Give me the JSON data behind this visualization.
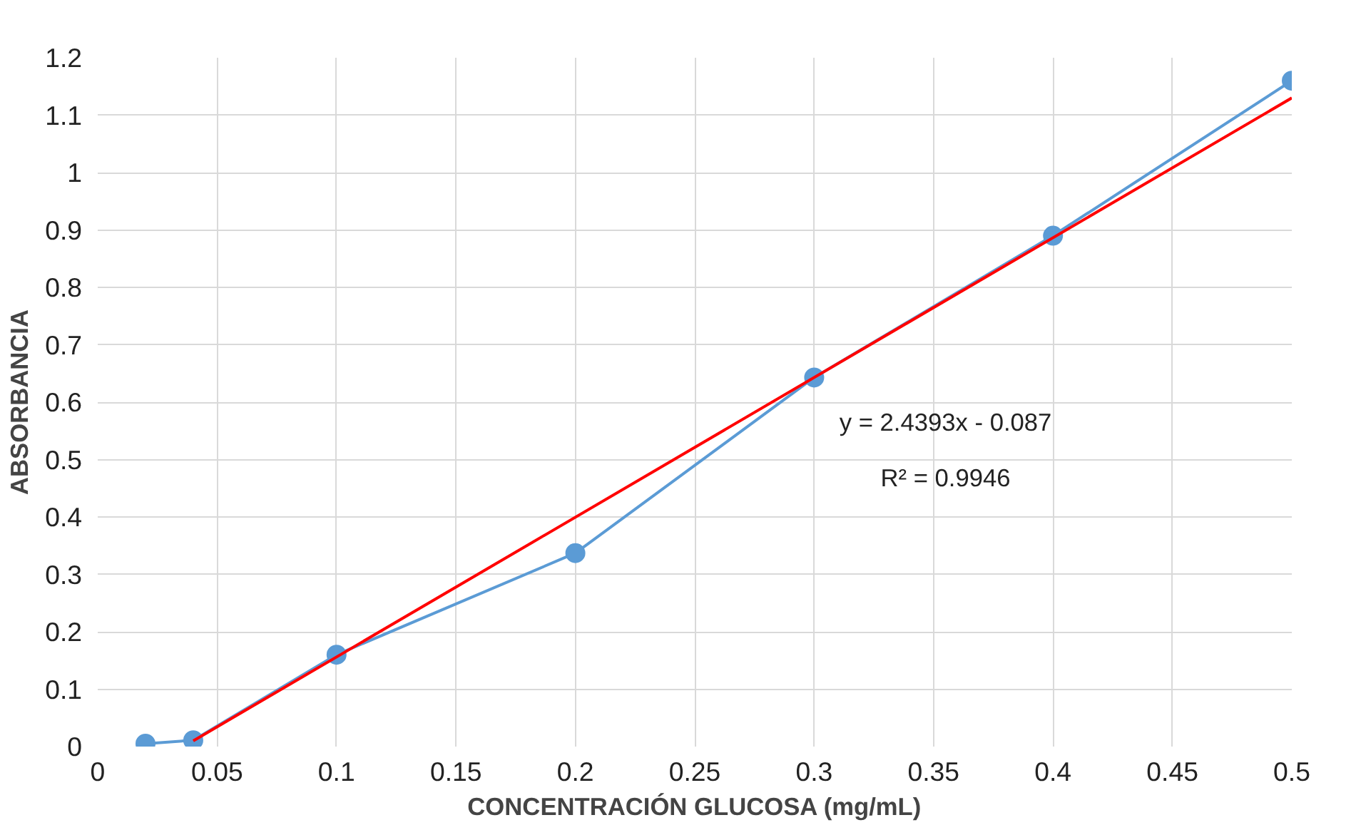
{
  "chart_data": {
    "type": "line",
    "xlabel": "CONCENTRACIÓN GLUCOSA (mg/mL)",
    "ylabel": "ABSORBANCIA",
    "x": [
      0.02,
      0.04,
      0.1,
      0.2,
      0.3,
      0.4,
      0.5
    ],
    "series": [
      {
        "color": "#5b9bd5",
        "marker": "circle",
        "values": [
          0.005,
          0.011,
          0.16,
          0.337,
          0.643,
          0.89,
          1.16
        ]
      },
      {
        "color": "#ff0000",
        "marker": "none",
        "x": [
          0.04,
          0.5
        ],
        "values": [
          0.01,
          1.13
        ]
      }
    ],
    "xlim": [
      0,
      0.5
    ],
    "ylim": [
      0,
      1.2
    ],
    "xticks": [
      0,
      0.05,
      0.1,
      0.15,
      0.2,
      0.25,
      0.3,
      0.35,
      0.4,
      0.45,
      0.5
    ],
    "yticks": [
      0,
      0.1,
      0.2,
      0.3,
      0.4,
      0.5,
      0.6,
      0.7,
      0.8,
      0.9,
      1,
      1.1,
      1.2
    ],
    "grid": true,
    "annotations": [
      "y = 2.4393x - 0.087",
      "R² = 0.9946"
    ]
  }
}
